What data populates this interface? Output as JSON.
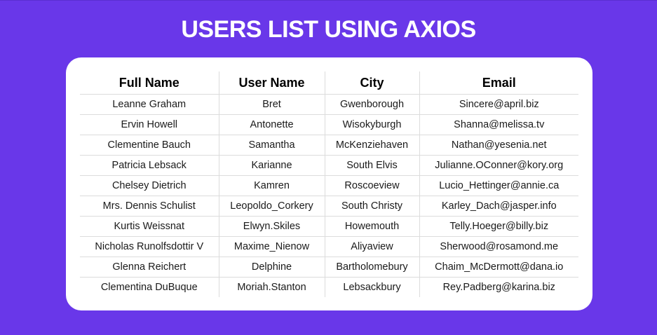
{
  "page": {
    "title": "USERS LIST USING AXIOS",
    "background_color": "#6937e9"
  },
  "table": {
    "headers": [
      "Full Name",
      "User Name",
      "City",
      "Email"
    ],
    "rows": [
      [
        "Leanne Graham",
        "Bret",
        "Gwenborough",
        "Sincere@april.biz"
      ],
      [
        "Ervin Howell",
        "Antonette",
        "Wisokyburgh",
        "Shanna@melissa.tv"
      ],
      [
        "Clementine Bauch",
        "Samantha",
        "McKenziehaven",
        "Nathan@yesenia.net"
      ],
      [
        "Patricia Lebsack",
        "Karianne",
        "South Elvis",
        "Julianne.OConner@kory.org"
      ],
      [
        "Chelsey Dietrich",
        "Kamren",
        "Roscoeview",
        "Lucio_Hettinger@annie.ca"
      ],
      [
        "Mrs. Dennis Schulist",
        "Leopoldo_Corkery",
        "South Christy",
        "Karley_Dach@jasper.info"
      ],
      [
        "Kurtis Weissnat",
        "Elwyn.Skiles",
        "Howemouth",
        "Telly.Hoeger@billy.biz"
      ],
      [
        "Nicholas Runolfsdottir V",
        "Maxime_Nienow",
        "Aliyaview",
        "Sherwood@rosamond.me"
      ],
      [
        "Glenna Reichert",
        "Delphine",
        "Bartholomebury",
        "Chaim_McDermott@dana.io"
      ],
      [
        "Clementina DuBuque",
        "Moriah.Stanton",
        "Lebsackbury",
        "Rey.Padberg@karina.biz"
      ]
    ]
  }
}
